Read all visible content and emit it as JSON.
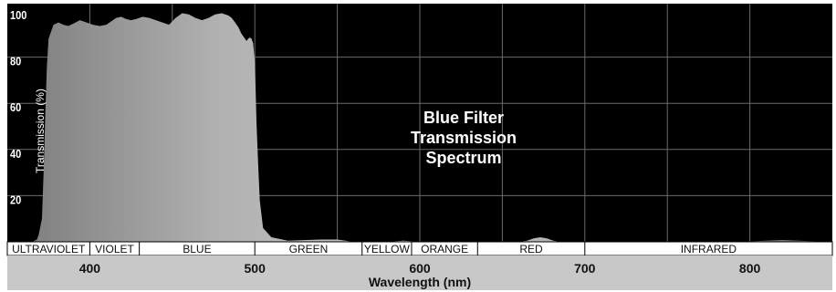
{
  "chart_data": {
    "type": "area",
    "title_lines": [
      "Blue Filter",
      "Transmission",
      "Spectrum"
    ],
    "xlabel": "Wavelength (nm)",
    "ylabel": "Transmission (%)",
    "xlim": [
      350,
      850
    ],
    "ylim": [
      0,
      100
    ],
    "x_ticks": [
      "400",
      "500",
      "600",
      "700",
      "800"
    ],
    "y_ticks": [
      "100",
      "80",
      "60",
      "40",
      "20"
    ],
    "grid": true,
    "bands": [
      {
        "label": "ULTRAVIOLET",
        "from": 350,
        "to": 400
      },
      {
        "label": "VIOLET",
        "from": 400,
        "to": 430
      },
      {
        "label": "BLUE",
        "from": 430,
        "to": 500
      },
      {
        "label": "GREEN",
        "from": 500,
        "to": 565
      },
      {
        "label": "YELLOW",
        "from": 565,
        "to": 595
      },
      {
        "label": "ORANGE",
        "from": 595,
        "to": 635
      },
      {
        "label": "RED",
        "from": 635,
        "to": 700
      },
      {
        "label": "INFRARED",
        "from": 700,
        "to": 850
      }
    ],
    "series": [
      {
        "x": [
          350,
          365,
          368,
          369,
          371,
          372,
          373,
          374,
          375,
          378,
          381,
          384,
          387,
          390,
          394,
          398,
          402,
          406,
          410,
          413,
          416,
          419,
          422,
          425,
          428,
          432,
          436,
          440,
          444,
          448,
          452,
          456,
          460,
          464,
          468,
          472,
          476,
          480,
          484,
          486,
          488,
          490,
          492,
          494,
          495,
          496,
          497,
          498,
          499,
          500,
          500.5,
          501,
          502,
          503,
          505,
          510,
          520,
          540,
          550,
          560,
          580,
          590,
          600,
          620,
          640,
          660,
          665,
          669,
          673,
          677,
          681,
          685,
          700,
          740,
          780,
          800,
          810,
          820,
          830,
          840,
          850
        ],
        "y": [
          0,
          0,
          1,
          3,
          10,
          30,
          55,
          76,
          88,
          94,
          95,
          94,
          93.5,
          94.5,
          96,
          95,
          94,
          93.5,
          94,
          95.5,
          97,
          97.5,
          96.5,
          96,
          96.5,
          97.5,
          97,
          96,
          95,
          94,
          97,
          99,
          98.5,
          97,
          96,
          97,
          98.5,
          99,
          98,
          97,
          95,
          93,
          90,
          88,
          87,
          88,
          88.5,
          88,
          86,
          78,
          66,
          52,
          34,
          18,
          6,
          2,
          0.5,
          1,
          1,
          0,
          0,
          0.5,
          0,
          0,
          0,
          0,
          0.5,
          1.5,
          2,
          1.5,
          0.5,
          0,
          0,
          0,
          0,
          0.2,
          0.5,
          0.8,
          0.5,
          0.2,
          0
        ]
      }
    ]
  }
}
